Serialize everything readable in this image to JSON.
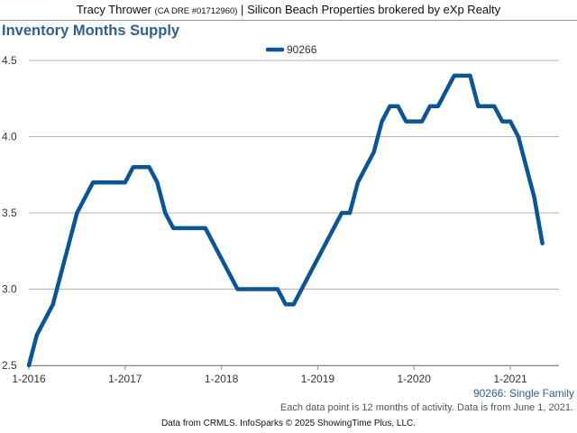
{
  "header": {
    "agent_name": "Tracy Thrower",
    "license": "(CA DRE #01712960)",
    "separator": "|",
    "brokerage": "Silicon Beach Properties brokered by eXp Realty"
  },
  "chart_data": {
    "type": "line",
    "title": "Inventory Months Supply",
    "xlabel": "",
    "ylabel": "",
    "ylim": [
      2.5,
      4.5
    ],
    "yticks": [
      "2.5",
      "3.0",
      "3.5",
      "4.0",
      "4.5"
    ],
    "xticks": [
      "1-2016",
      "1-2017",
      "1-2018",
      "1-2019",
      "1-2020",
      "1-2021"
    ],
    "grid": true,
    "legend_position": "top-center",
    "series_label": "90266: Single Family",
    "series": [
      {
        "name": "90266",
        "color": "#0b5595",
        "x": [
          "2016-01",
          "2016-02",
          "2016-03",
          "2016-04",
          "2016-05",
          "2016-06",
          "2016-07",
          "2016-08",
          "2016-09",
          "2016-10",
          "2016-11",
          "2016-12",
          "2017-01",
          "2017-02",
          "2017-03",
          "2017-04",
          "2017-05",
          "2017-06",
          "2017-07",
          "2017-08",
          "2017-09",
          "2017-10",
          "2017-11",
          "2017-12",
          "2018-01",
          "2018-02",
          "2018-03",
          "2018-04",
          "2018-05",
          "2018-06",
          "2018-07",
          "2018-08",
          "2018-09",
          "2018-10",
          "2018-11",
          "2018-12",
          "2019-01",
          "2019-02",
          "2019-03",
          "2019-04",
          "2019-05",
          "2019-06",
          "2019-07",
          "2019-08",
          "2019-09",
          "2019-10",
          "2019-11",
          "2019-12",
          "2020-01",
          "2020-02",
          "2020-03",
          "2020-04",
          "2020-05",
          "2020-06",
          "2020-07",
          "2020-08",
          "2020-09",
          "2020-10",
          "2020-11",
          "2020-12",
          "2021-01",
          "2021-02",
          "2021-03",
          "2021-04",
          "2021-05"
        ],
        "values": [
          2.5,
          2.7,
          2.8,
          2.9,
          3.1,
          3.3,
          3.5,
          3.6,
          3.7,
          3.7,
          3.7,
          3.7,
          3.7,
          3.8,
          3.8,
          3.8,
          3.7,
          3.5,
          3.4,
          3.4,
          3.4,
          3.4,
          3.4,
          3.3,
          3.2,
          3.1,
          3.0,
          3.0,
          3.0,
          3.0,
          3.0,
          3.0,
          2.9,
          2.9,
          3.0,
          3.1,
          3.2,
          3.3,
          3.4,
          3.5,
          3.5,
          3.7,
          3.8,
          3.9,
          4.1,
          4.2,
          4.2,
          4.1,
          4.1,
          4.1,
          4.2,
          4.2,
          4.3,
          4.4,
          4.4,
          4.4,
          4.2,
          4.2,
          4.2,
          4.1,
          4.1,
          4.0,
          3.8,
          3.6,
          3.3
        ]
      }
    ]
  },
  "footnote": "Each data point is 12 months of activity. Data is from June 1, 2021.",
  "source": "Data from CRMLS. InfoSparks © 2025 ShowingTime Plus, LLC."
}
